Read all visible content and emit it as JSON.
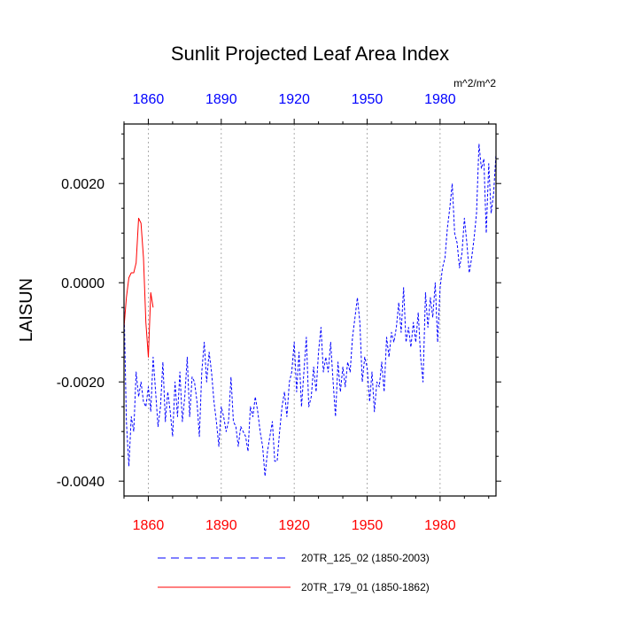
{
  "chart_data": {
    "type": "line",
    "title": "Sunlit Projected Leaf Area Index",
    "units": "m^2/m^2",
    "ylabel": "LAISUN",
    "xlabel": "",
    "xlim": [
      1850,
      2003
    ],
    "ylim": [
      -0.0043,
      0.0032
    ],
    "x_ticks": [
      1860,
      1890,
      1920,
      1950,
      1980
    ],
    "x_tick_labels": [
      "1860",
      "1890",
      "1920",
      "1950",
      "1980"
    ],
    "y_ticks": [
      -0.004,
      -0.002,
      0.0,
      0.002
    ],
    "y_tick_labels": [
      "-0.0040",
      "-0.0020",
      "0.0000",
      "0.0020"
    ],
    "top_tick_color": "#0000ff",
    "bottom_tick_color": "#ff0000",
    "grid": "vertical dotted at x ticks",
    "legend_position": "bottom",
    "series": [
      {
        "name": "20TR_125_02 (1850-2003)",
        "color": "#0000ff",
        "style": "dashed",
        "x": [
          1850,
          1851,
          1852,
          1853,
          1854,
          1855,
          1856,
          1857,
          1858,
          1859,
          1860,
          1861,
          1862,
          1863,
          1864,
          1865,
          1866,
          1867,
          1868,
          1869,
          1870,
          1871,
          1872,
          1873,
          1874,
          1875,
          1876,
          1877,
          1878,
          1879,
          1880,
          1881,
          1882,
          1883,
          1884,
          1885,
          1886,
          1887,
          1888,
          1889,
          1890,
          1891,
          1892,
          1893,
          1894,
          1895,
          1896,
          1897,
          1898,
          1899,
          1900,
          1901,
          1902,
          1903,
          1904,
          1905,
          1906,
          1907,
          1908,
          1909,
          1910,
          1911,
          1912,
          1913,
          1914,
          1915,
          1916,
          1917,
          1918,
          1919,
          1920,
          1921,
          1922,
          1923,
          1924,
          1925,
          1926,
          1927,
          1928,
          1929,
          1930,
          1931,
          1932,
          1933,
          1934,
          1935,
          1936,
          1937,
          1938,
          1939,
          1940,
          1941,
          1942,
          1943,
          1944,
          1945,
          1946,
          1947,
          1948,
          1949,
          1950,
          1951,
          1952,
          1953,
          1954,
          1955,
          1956,
          1957,
          1958,
          1959,
          1960,
          1961,
          1962,
          1963,
          1964,
          1965,
          1966,
          1967,
          1968,
          1969,
          1970,
          1971,
          1972,
          1973,
          1974,
          1975,
          1976,
          1977,
          1978,
          1979,
          1980,
          1981,
          1982,
          1983,
          1984,
          1985,
          1986,
          1987,
          1988,
          1989,
          1990,
          1991,
          1992,
          1993,
          1994,
          1995,
          1996,
          1997,
          1998,
          1999,
          2000,
          2001,
          2002,
          2003
        ],
        "values": [
          -0.0004,
          -0.0028,
          -0.0037,
          -0.0027,
          -0.003,
          -0.0018,
          -0.0023,
          -0.002,
          -0.0024,
          -0.0025,
          -0.0021,
          -0.0026,
          -0.0015,
          -0.0022,
          -0.0029,
          -0.0025,
          -0.0016,
          -0.0028,
          -0.0022,
          -0.0026,
          -0.0031,
          -0.002,
          -0.0027,
          -0.0018,
          -0.0028,
          -0.0023,
          -0.0015,
          -0.0027,
          -0.0019,
          -0.002,
          -0.0024,
          -0.0031,
          -0.0018,
          -0.0012,
          -0.002,
          -0.0014,
          -0.0018,
          -0.0024,
          -0.0028,
          -0.0033,
          -0.0025,
          -0.0027,
          -0.003,
          -0.0028,
          -0.0019,
          -0.0028,
          -0.0029,
          -0.0033,
          -0.0029,
          -0.003,
          -0.0031,
          -0.0034,
          -0.0025,
          -0.0027,
          -0.0023,
          -0.0026,
          -0.003,
          -0.0033,
          -0.0039,
          -0.0034,
          -0.0031,
          -0.0028,
          -0.0036,
          -0.0036,
          -0.003,
          -0.0025,
          -0.0022,
          -0.0027,
          -0.002,
          -0.0018,
          -0.0012,
          -0.0022,
          -0.0014,
          -0.0025,
          -0.0018,
          -0.0011,
          -0.0025,
          -0.0023,
          -0.0017,
          -0.0022,
          -0.0014,
          -0.0009,
          -0.0018,
          -0.0015,
          -0.0018,
          -0.0012,
          -0.002,
          -0.0027,
          -0.0016,
          -0.0022,
          -0.0017,
          -0.0021,
          -0.0016,
          -0.0018,
          -0.0011,
          -0.0007,
          -0.0003,
          -0.0008,
          -0.002,
          -0.0015,
          -0.0017,
          -0.0024,
          -0.0018,
          -0.0026,
          -0.002,
          -0.0021,
          -0.0016,
          -0.0022,
          -0.0011,
          -0.0015,
          -0.001,
          -0.0012,
          -0.0009,
          -0.0004,
          -0.001,
          -0.0001,
          -0.0012,
          -0.0009,
          -0.0013,
          -0.0008,
          -0.0012,
          -0.0006,
          -0.0015,
          -0.002,
          -0.0002,
          -0.0009,
          -0.0003,
          -0.0007,
          0.0,
          -0.0012,
          -0.0001,
          0.0003,
          0.0005,
          0.0011,
          0.0015,
          0.002,
          0.001,
          0.0008,
          0.0003,
          0.0006,
          0.0013,
          0.0008,
          0.0002,
          0.0005,
          0.0009,
          0.0014,
          0.0028,
          0.0023,
          0.0025,
          0.001,
          0.0024,
          0.0014,
          0.0018,
          0.0026
        ]
      },
      {
        "name": "20TR_179_01 (1850-1862)",
        "color": "#ff0000",
        "style": "solid",
        "x": [
          1850,
          1851,
          1852,
          1853,
          1854,
          1855,
          1856,
          1857,
          1858,
          1859,
          1860,
          1861,
          1862
        ],
        "values": [
          -0.0009,
          -0.0003,
          0.0001,
          0.0002,
          0.0002,
          0.0004,
          0.0013,
          0.0012,
          0.0005,
          -0.0008,
          -0.0015,
          -0.0002,
          -0.0005
        ]
      }
    ]
  }
}
